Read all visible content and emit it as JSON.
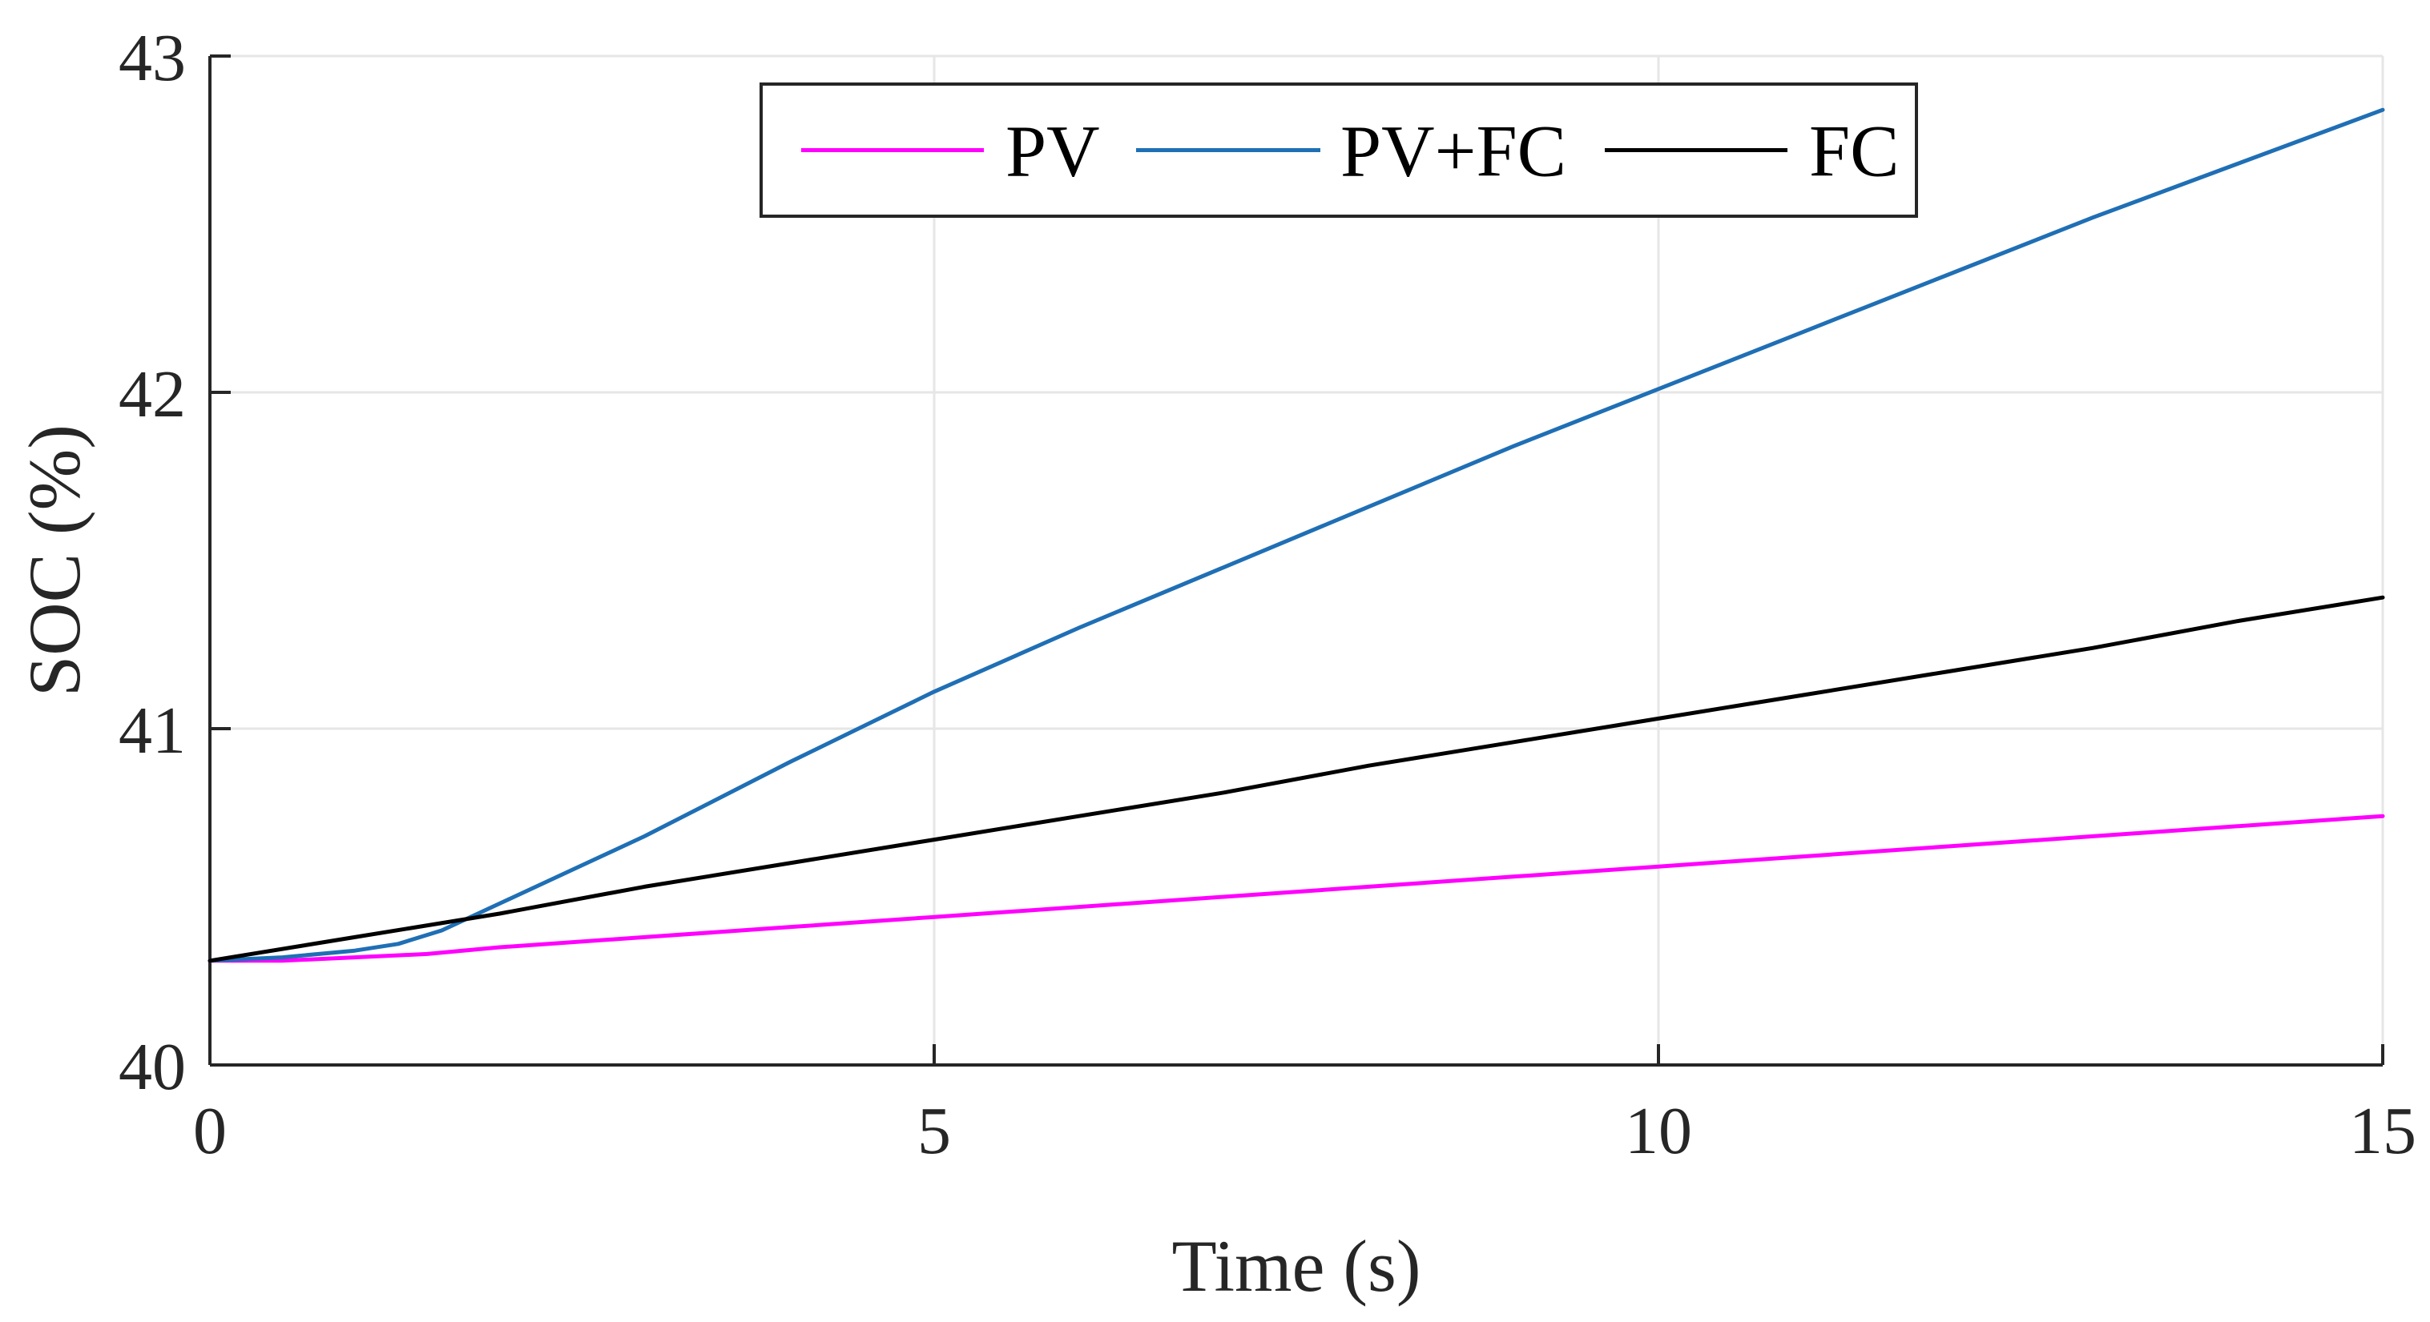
{
  "chart_data": {
    "type": "line",
    "title": "",
    "xlabel": "Time (s)",
    "ylabel": "SOC (%)",
    "xlim": [
      0,
      15
    ],
    "ylim": [
      40,
      43
    ],
    "xticks": [
      0,
      5,
      10,
      15
    ],
    "yticks": [
      40,
      41,
      42,
      43
    ],
    "grid": true,
    "legend_position": "top-center",
    "colors": {
      "axis": "#262626",
      "grid": "#e6e6e6"
    },
    "series": [
      {
        "name": "PV",
        "color": "#ff00ff",
        "x": [
          0,
          0.5,
          1,
          1.5,
          2,
          3,
          4,
          5,
          6,
          7,
          8,
          9,
          10,
          11,
          12,
          13,
          14,
          15
        ],
        "y": [
          40.31,
          40.31,
          40.32,
          40.33,
          40.35,
          40.38,
          40.41,
          40.44,
          40.47,
          40.5,
          40.53,
          40.56,
          40.59,
          40.62,
          40.65,
          40.68,
          40.71,
          40.74
        ]
      },
      {
        "name": "PV+FC",
        "color": "#1f6fb5",
        "x": [
          0,
          0.5,
          1,
          1.3,
          1.6,
          2,
          2.5,
          3,
          4,
          5,
          6,
          7,
          8,
          9,
          10,
          11,
          12,
          13,
          14,
          15
        ],
        "y": [
          40.31,
          40.32,
          40.34,
          40.36,
          40.4,
          40.48,
          40.58,
          40.68,
          40.9,
          41.11,
          41.3,
          41.48,
          41.66,
          41.84,
          42.01,
          42.18,
          42.35,
          42.52,
          42.68,
          42.84
        ]
      },
      {
        "name": "FC",
        "color": "#000000",
        "x": [
          0,
          1,
          2,
          3,
          4,
          5,
          6,
          7,
          8,
          9,
          10,
          11,
          12,
          13,
          14,
          15
        ],
        "y": [
          40.31,
          40.38,
          40.45,
          40.53,
          40.6,
          40.67,
          40.74,
          40.81,
          40.89,
          40.96,
          41.03,
          41.1,
          41.17,
          41.24,
          41.32,
          41.39
        ]
      }
    ]
  }
}
